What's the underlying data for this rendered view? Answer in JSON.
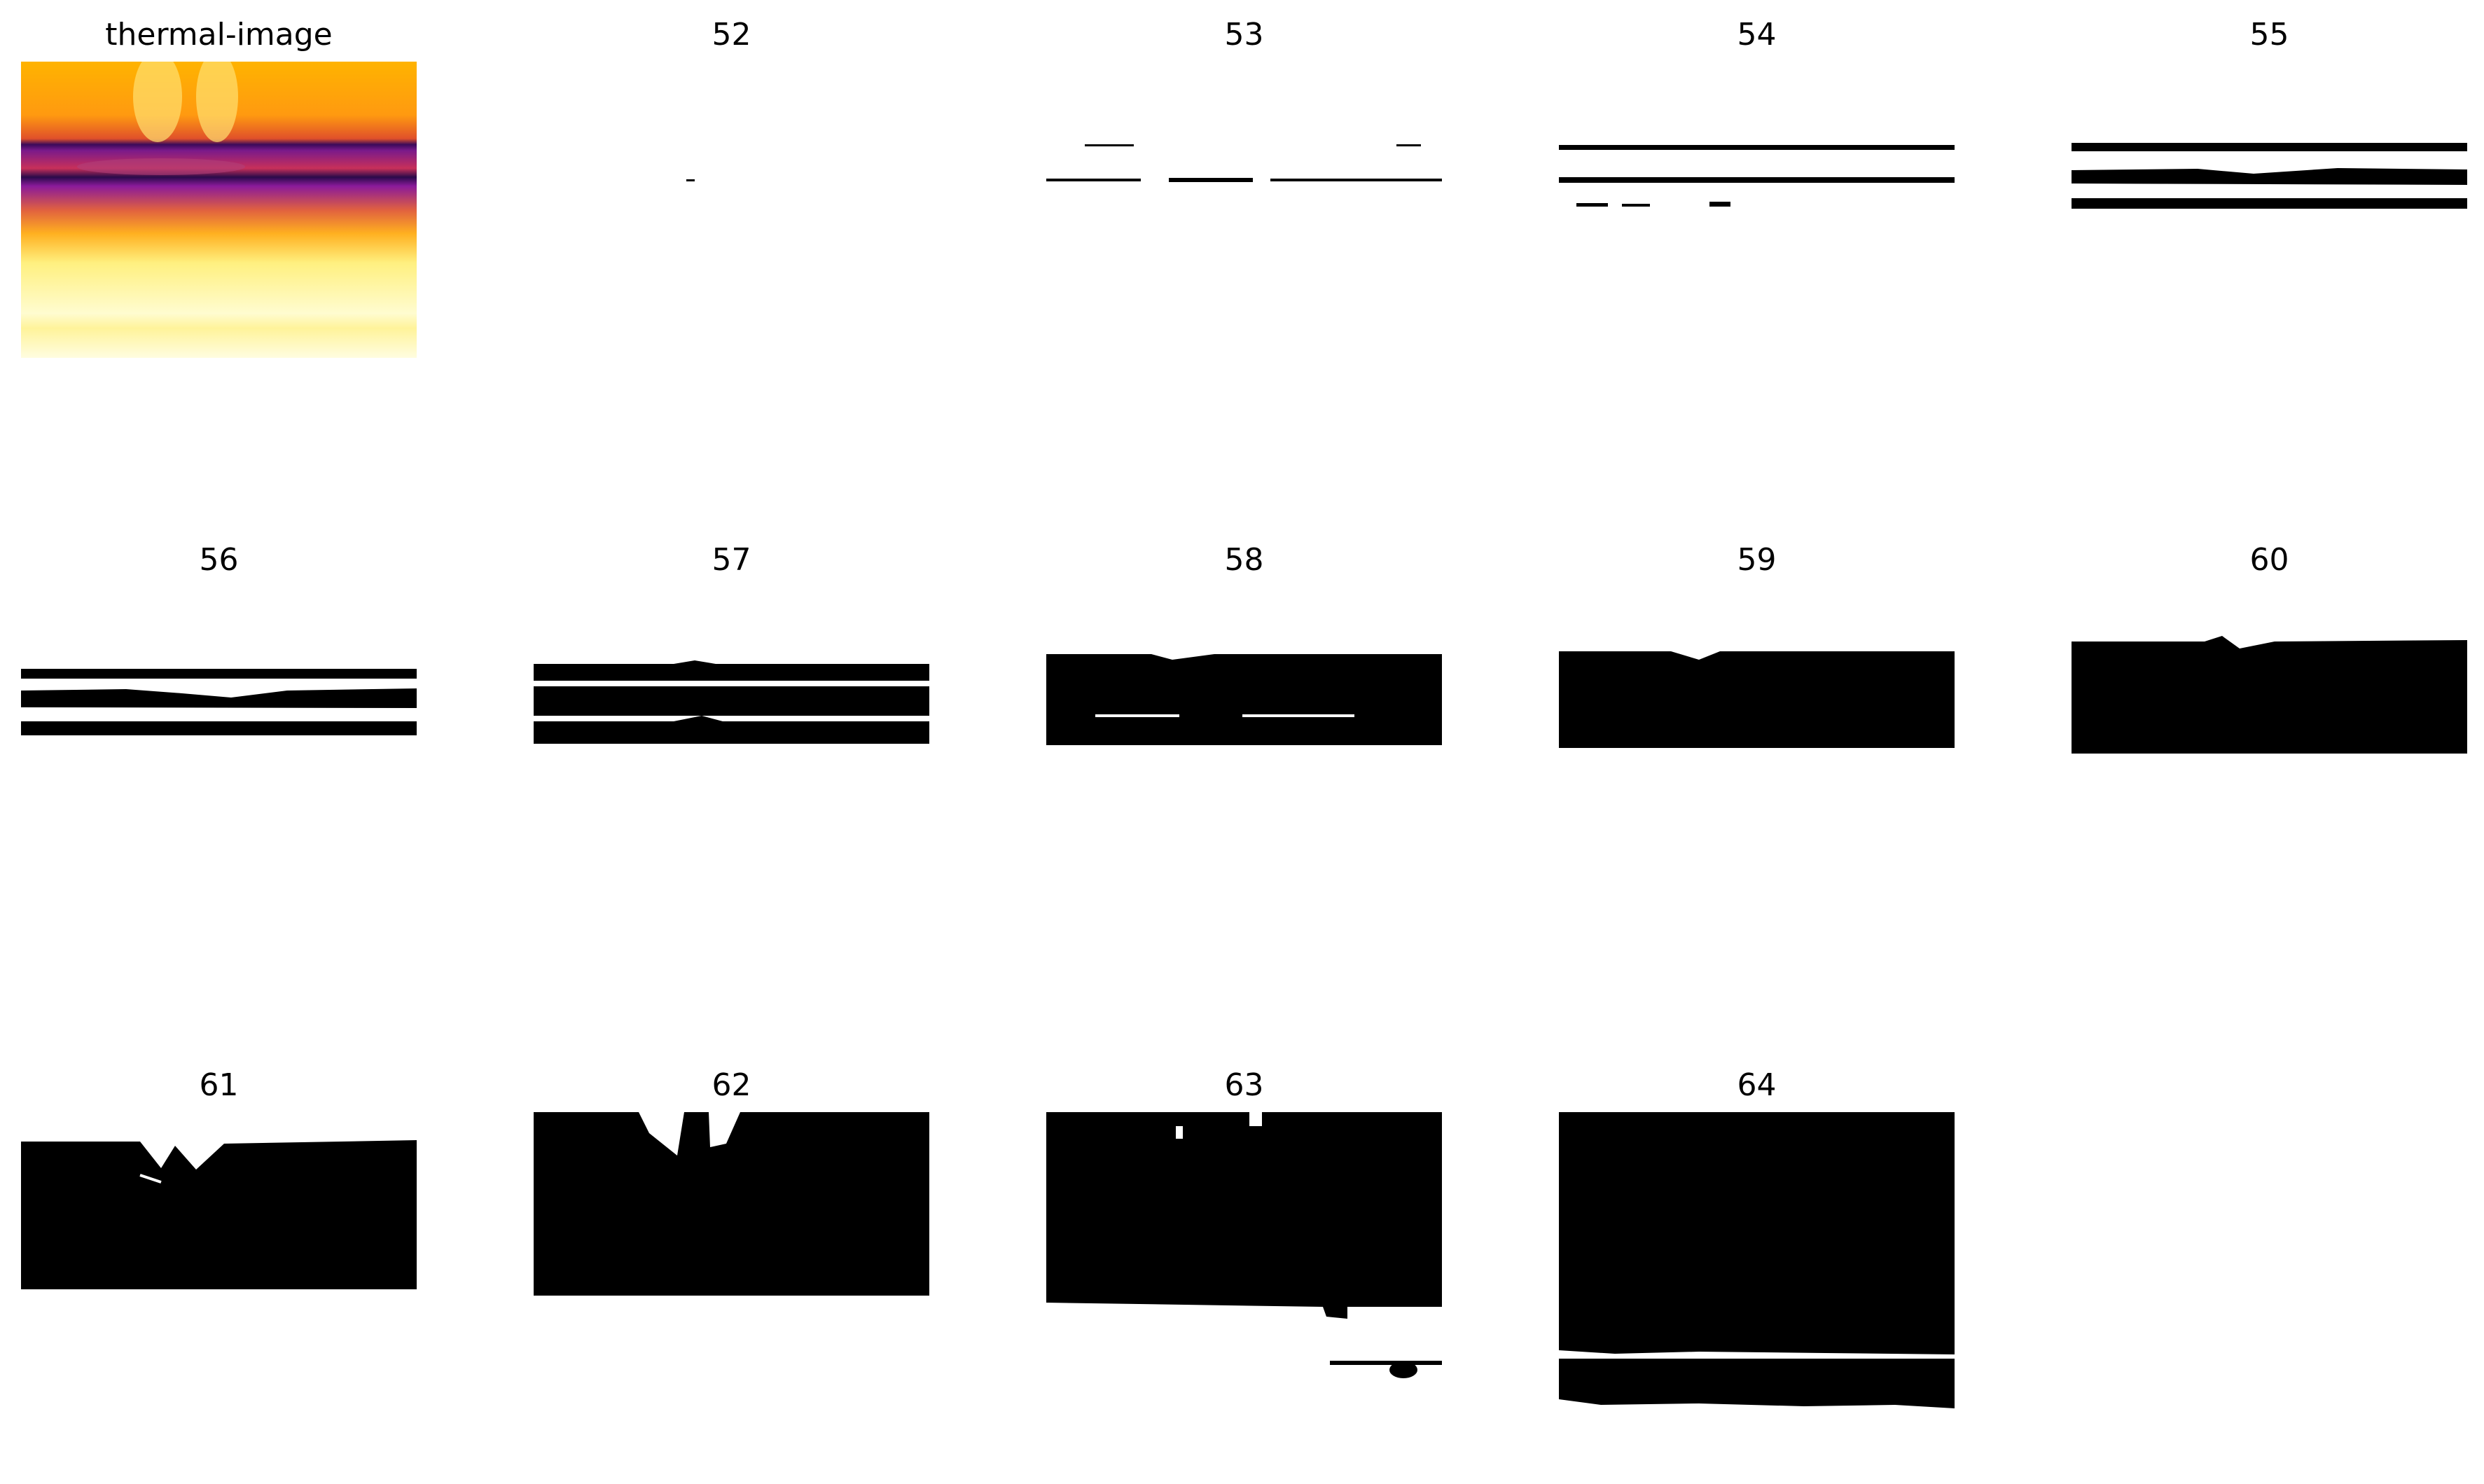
{
  "figure": {
    "panels": [
      {
        "id": "thermal",
        "title": "thermal-image"
      },
      {
        "id": "p52",
        "title": "52"
      },
      {
        "id": "p53",
        "title": "53"
      },
      {
        "id": "p54",
        "title": "54"
      },
      {
        "id": "p55",
        "title": "55"
      },
      {
        "id": "p56",
        "title": "56"
      },
      {
        "id": "p57",
        "title": "57"
      },
      {
        "id": "p58",
        "title": "58"
      },
      {
        "id": "p59",
        "title": "59"
      },
      {
        "id": "p60",
        "title": "60"
      },
      {
        "id": "p61",
        "title": "61"
      },
      {
        "id": "p62",
        "title": "62"
      },
      {
        "id": "p63",
        "title": "63"
      },
      {
        "id": "p64",
        "title": "64"
      }
    ],
    "colors": {
      "mask": "#000000",
      "background": "#ffffff",
      "thermal_hot": "#fffde0",
      "thermal_warm": "#ffb300",
      "thermal_cool": "#6a1a9a",
      "thermal_cold": "#1a0a4a"
    }
  }
}
